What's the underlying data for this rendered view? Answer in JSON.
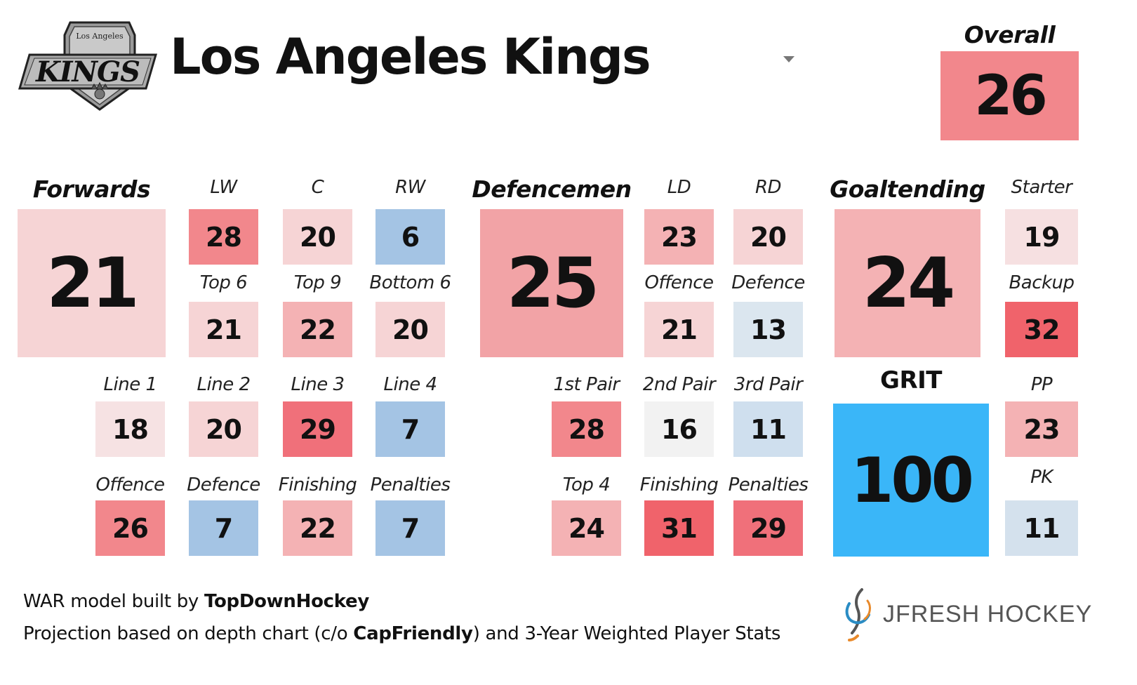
{
  "header": {
    "team_name": "Los Angeles Kings",
    "logo_small_text": "Los Angeles",
    "logo_wordmark": "KINGS",
    "overall_label": "Overall",
    "overall_value": "26"
  },
  "forwards": {
    "label": "Forwards",
    "value": "21",
    "lw_label": "LW",
    "lw": "28",
    "c_label": "C",
    "c": "20",
    "rw_label": "RW",
    "rw": "6",
    "top6_label": "Top 6",
    "top6": "21",
    "top9_label": "Top 9",
    "top9": "22",
    "bottom6_label": "Bottom 6",
    "bottom6": "20",
    "line1_label": "Line 1",
    "line1": "18",
    "line2_label": "Line 2",
    "line2": "20",
    "line3_label": "Line 3",
    "line3": "29",
    "line4_label": "Line 4",
    "line4": "7",
    "offence_label": "Offence",
    "offence": "26",
    "defence_label": "Defence",
    "defence": "7",
    "finishing_label": "Finishing",
    "finishing": "22",
    "penalties_label": "Penalties",
    "penalties": "7"
  },
  "defencemen": {
    "label": "Defencemen",
    "value": "25",
    "ld_label": "LD",
    "ld": "23",
    "rd_label": "RD",
    "rd": "20",
    "offence_label": "Offence",
    "offence": "21",
    "defence_label": "Defence",
    "defence": "13",
    "pair1_label": "1st Pair",
    "pair1": "28",
    "pair2_label": "2nd Pair",
    "pair2": "16",
    "pair3_label": "3rd Pair",
    "pair3": "11",
    "top4_label": "Top 4",
    "top4": "24",
    "finishing_label": "Finishing",
    "finishing": "31",
    "penalties_label": "Penalties",
    "penalties": "29"
  },
  "goaltending": {
    "label": "Goaltending",
    "value": "24",
    "starter_label": "Starter",
    "starter": "19",
    "backup_label": "Backup",
    "backup": "32"
  },
  "grit": {
    "label": "GRIT",
    "value": "100"
  },
  "special_teams": {
    "pp_label": "PP",
    "pp": "23",
    "pk_label": "PK",
    "pk": "11"
  },
  "footer": {
    "line1_prefix": "WAR model built by ",
    "line1_bold": "TopDownHockey",
    "line2_prefix": "Projection based on depth chart (c/o ",
    "line2_bold": "CapFriendly",
    "line2_suffix": ") and 3-Year Weighted Player Stats",
    "brand": "JFRESH HOCKEY"
  },
  "colors": {
    "red_strong": "#f0636b",
    "red_medium": "#f2878c",
    "red_light": "#f4b2b4",
    "red_pale": "#f6d4d5",
    "neutral": "#f2f2f2",
    "blue_pale": "#cfdfee",
    "blue_medium": "#a4c4e4",
    "grit_blue": "#3ab6f8",
    "logo_gray": "#b8b8b8"
  }
}
